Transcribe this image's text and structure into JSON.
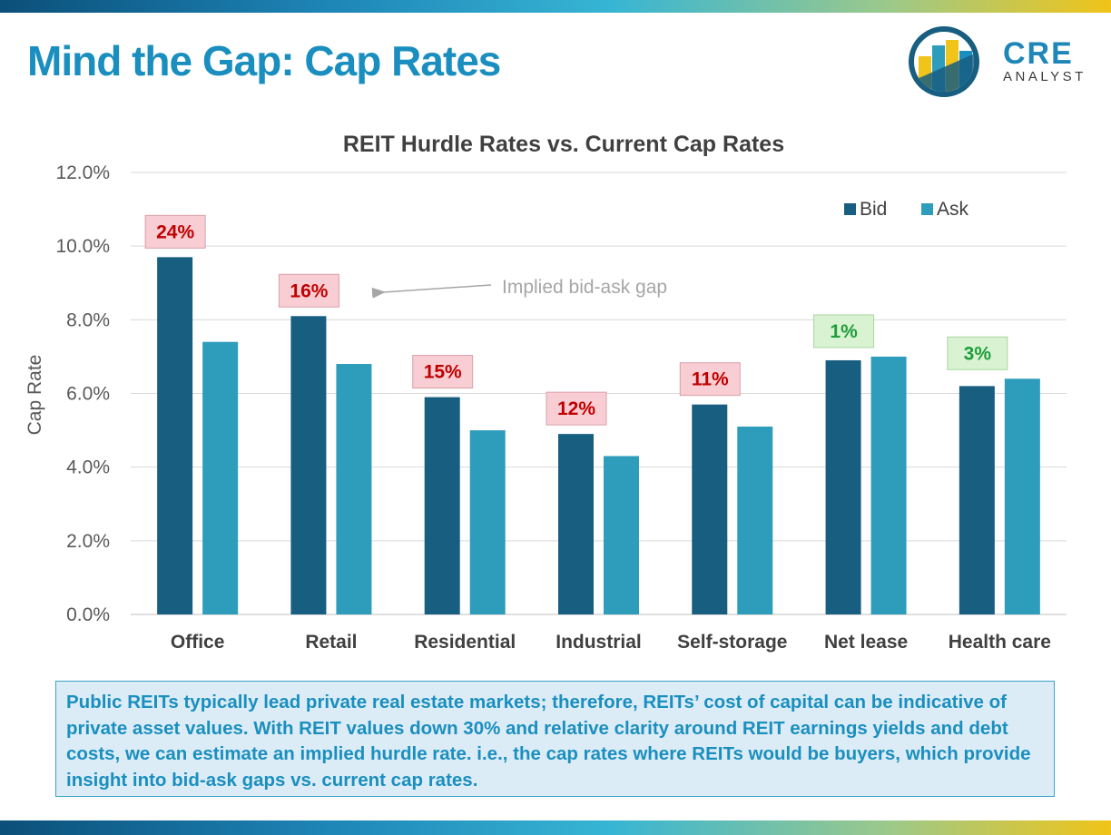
{
  "slide": {
    "title": "Mind the Gap: Cap Rates",
    "logo": {
      "main": "CRE",
      "sub": "ANALYST"
    },
    "note": "Public REITs typically lead private real estate markets; therefore, REITs’ cost of capital can be indicative of private asset values. With REIT values down 30% and relative clarity around REIT earnings yields and debt costs, we can estimate an implied hurdle rate. i.e., the cap rates where REITs would be buyers, which provide insight into bid-ask gaps vs. current cap rates."
  },
  "colors": {
    "title": "#1a8fbf",
    "bid": "#175e80",
    "ask": "#2e9cbb",
    "gap_negative_bg": "#f8cdd3",
    "gap_negative_text": "#c00000",
    "gap_positive_bg": "#d8f2d2",
    "gap_positive_text": "#1f9e3a",
    "note_bg": "#dcecf6"
  },
  "chart_data": {
    "type": "bar",
    "title": "REIT Hurdle Rates vs. Current Cap Rates",
    "xlabel": "",
    "ylabel": "Cap Rate",
    "ylim": [
      0,
      12
    ],
    "yticks": [
      "0.0%",
      "2.0%",
      "4.0%",
      "6.0%",
      "8.0%",
      "10.0%",
      "12.0%"
    ],
    "grid": true,
    "legend_position": "top-right",
    "categories": [
      "Office",
      "Retail",
      "Residential",
      "Industrial",
      "Self-storage",
      "Net lease",
      "Health care"
    ],
    "series": [
      {
        "name": "Bid",
        "values": [
          9.7,
          8.1,
          5.9,
          4.9,
          5.7,
          6.9,
          6.2
        ]
      },
      {
        "name": "Ask",
        "values": [
          7.4,
          6.8,
          5.0,
          4.3,
          5.1,
          7.0,
          6.4
        ]
      }
    ],
    "gap_labels": [
      "24%",
      "16%",
      "15%",
      "12%",
      "11%",
      "1%",
      "3%"
    ],
    "gap_sign": [
      "negative",
      "negative",
      "negative",
      "negative",
      "negative",
      "positive",
      "positive"
    ],
    "annotation": "Implied bid-ask gap"
  }
}
